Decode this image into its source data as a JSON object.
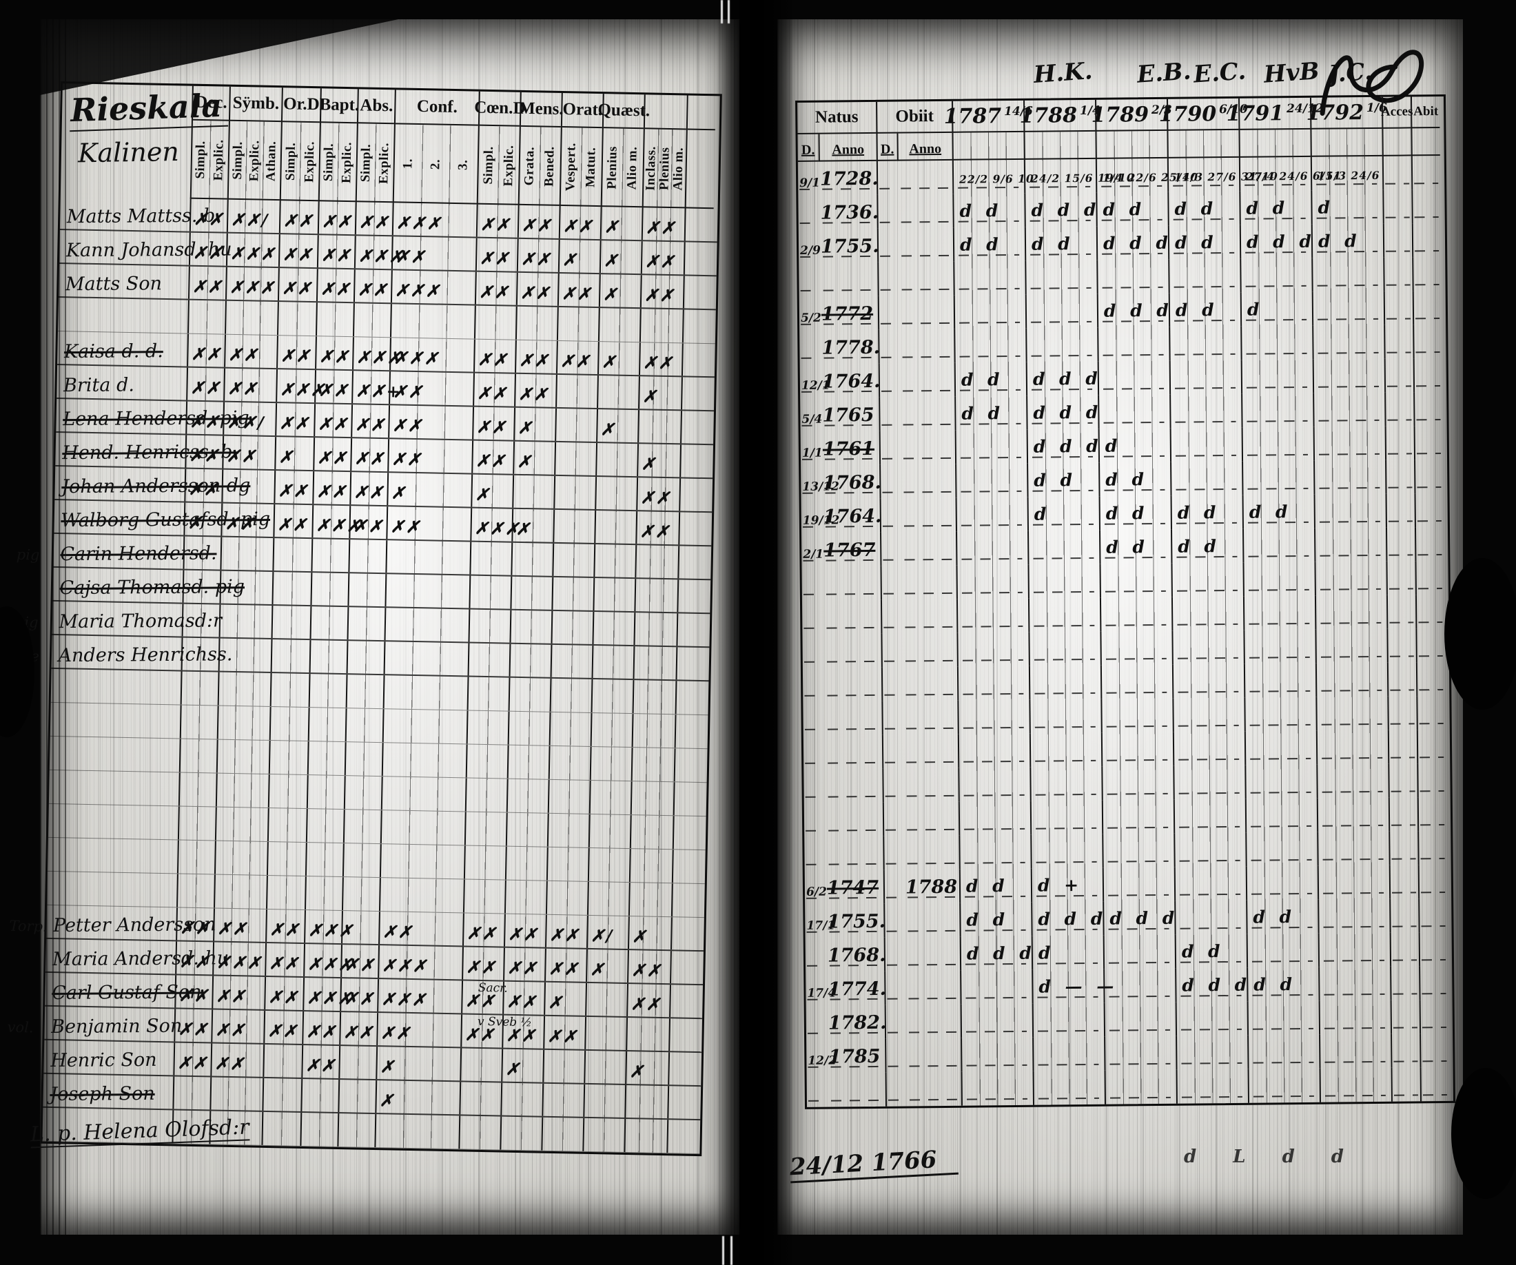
{
  "document": {
    "kind": "parish communion book scan",
    "left_page": {
      "title": "Rieskala",
      "subtitle": "Kalinen",
      "footnote": "L. p. Helena Olofsd:r",
      "columns": [
        {
          "label": "Dec.",
          "subs": [
            "Simpl.",
            "Explic."
          ]
        },
        {
          "label": "Sÿmb.",
          "subs": [
            "Simpl.",
            "Explic.",
            "Athan."
          ]
        },
        {
          "label": "Or.D",
          "subs": [
            "Simpl.",
            "Explic."
          ]
        },
        {
          "label": "Bapt.",
          "subs": [
            "Simpl.",
            "Explic."
          ]
        },
        {
          "label": "Abs.",
          "subs": [
            "Simpl.",
            "Explic."
          ]
        },
        {
          "label": "Conf.",
          "subs": [
            "1.",
            "2.",
            "3."
          ]
        },
        {
          "label": "Cœn.D",
          "subs": [
            "Simpl.",
            "Explic."
          ]
        },
        {
          "label": "Mens.",
          "subs": [
            "Grata.",
            "Bened."
          ]
        },
        {
          "label": "Orat.",
          "subs": [
            "Vespert.",
            "Matut."
          ]
        },
        {
          "label": "Quæst.",
          "subs": [
            "Plenius",
            "Alio m."
          ]
        },
        {
          "label": "",
          "subs": [
            "Inclass.",
            "Plenius",
            "Alio m."
          ]
        },
        {
          "label": "",
          "subs": [
            ""
          ]
        }
      ],
      "rows": [
        {
          "prefix": "",
          "name": "Matts Mattss. b.",
          "struck": false,
          "marks": [
            "✗✗",
            "✗✗/",
            "✗✗",
            "✗✗",
            "✗✗",
            "✗✗✗",
            "✗✗",
            "✗✗",
            "✗✗",
            "✗",
            "✗✗",
            ""
          ]
        },
        {
          "prefix": "",
          "name": "Kann Johansd. hu",
          "struck": false,
          "marks": [
            "✗✗",
            "✗✗✗",
            "✗✗",
            "✗✗",
            "✗✗✗",
            "✗✗",
            "✗✗",
            "✗✗",
            "✗",
            "✗",
            "✗✗",
            ""
          ]
        },
        {
          "prefix": "",
          "name": "Matts Son",
          "struck": false,
          "marks": [
            "✗✗",
            "✗✗✗",
            "✗✗",
            "✗✗",
            "✗✗",
            "✗✗✗",
            "✗✗",
            "✗✗",
            "✗✗",
            "✗",
            "✗✗",
            ""
          ]
        },
        {
          "prefix": "",
          "name": "",
          "struck": false,
          "marks": []
        },
        {
          "prefix": "",
          "name": "Kaisa d. d.",
          "struck": true,
          "marks": [
            "✗✗",
            "✗✗",
            "✗✗",
            "✗✗",
            "✗✗✗",
            "✗✗✗",
            "✗✗",
            "✗✗",
            "✗✗",
            "✗",
            "✗✗",
            ""
          ]
        },
        {
          "prefix": "",
          "name": "Brita d.",
          "struck": false,
          "marks": [
            "✗✗",
            "✗✗",
            "✗✗✗",
            "✗✗",
            "✗✗+",
            "✗✗",
            "✗✗",
            "✗✗",
            "",
            "",
            "✗",
            ""
          ]
        },
        {
          "prefix": "",
          "name": "Lena Hendersd. pig",
          "struck": true,
          "marks": [
            "✗✗",
            "✗✗/",
            "✗✗",
            "✗✗",
            "✗✗",
            "✗✗",
            "✗✗",
            "✗",
            "",
            "✗",
            "",
            ""
          ]
        },
        {
          "prefix": "",
          "name": "Hend. Henricss. b.",
          "struck": true,
          "marks": [
            "✗✗",
            "✗✗",
            "✗",
            "✗✗",
            "✗✗",
            "✗✗",
            "✗✗",
            "✗",
            "",
            "",
            "✗",
            ""
          ]
        },
        {
          "prefix": "",
          "name": "Johan Andersson dg",
          "struck": true,
          "marks": [
            "✗✗",
            "",
            "✗✗",
            "✗✗",
            "✗✗",
            "✗",
            "✗",
            "",
            "",
            "",
            "✗✗",
            ""
          ]
        },
        {
          "prefix": "",
          "name": "Walborg Gustafsd. pig",
          "struck": true,
          "marks": [
            "✗",
            "✗✗",
            "✗✗",
            "✗✗✗",
            "✗✗",
            "✗✗",
            "✗✗✗",
            "✗",
            "",
            "",
            "✗✗",
            ""
          ]
        },
        {
          "prefix": "pig",
          "name": "Carin Hendersd.",
          "struck": true,
          "marks": []
        },
        {
          "prefix": "",
          "name": "Cajsa Thomasd. pig",
          "struck": true,
          "marks": []
        },
        {
          "prefix": "pig",
          "name": "Maria Thomasd:r",
          "struck": false,
          "marks": []
        },
        {
          "prefix": "dre",
          "name": "Anders Henrichss.",
          "struck": false,
          "marks": []
        },
        {
          "prefix": "",
          "name": "",
          "struck": false,
          "marks": []
        },
        {
          "prefix": "",
          "name": "",
          "struck": false,
          "marks": []
        },
        {
          "prefix": "",
          "name": "",
          "struck": false,
          "marks": []
        },
        {
          "prefix": "",
          "name": "",
          "struck": false,
          "marks": []
        },
        {
          "prefix": "",
          "name": "",
          "struck": false,
          "marks": []
        },
        {
          "prefix": "",
          "name": "",
          "struck": false,
          "marks": []
        },
        {
          "prefix": "",
          "name": "",
          "struck": false,
          "marks": []
        },
        {
          "prefix": "Torp.",
          "name": "Petter Andersson",
          "struck": false,
          "marks": [
            "✗✗",
            "✗✗",
            "✗✗",
            "✗✗✗",
            "",
            "✗✗",
            "✗✗",
            "✗✗",
            "✗✗",
            "✗/",
            "✗",
            ""
          ]
        },
        {
          "prefix": "",
          "name": "Maria Andersd. hu",
          "struck": false,
          "marks": [
            "✗✗",
            "✗✗✗",
            "✗✗",
            "✗✗✗",
            "✗✗",
            "✗✗✗",
            "✗✗",
            "✗✗",
            "✗✗",
            "✗",
            "✗✗",
            ""
          ]
        },
        {
          "prefix": "",
          "name": "Carl Gustaf Son",
          "struck": true,
          "marks": [
            "✗✗",
            "✗✗",
            "✗✗",
            "✗✗✗",
            "✗✗",
            "✗✗✗",
            "✗✗",
            "✗✗",
            "✗",
            "",
            "✗✗",
            ""
          ],
          "note": "Sacr."
        },
        {
          "prefix": "vol.",
          "name": "Benjamin Son",
          "struck": false,
          "marks": [
            "✗✗",
            "✗✗",
            "✗✗",
            "✗✗",
            "✗✗",
            "✗✗",
            "✗✗",
            "✗✗",
            "✗✗",
            "",
            "",
            ""
          ],
          "note": "v Sveb ½"
        },
        {
          "prefix": "",
          "name": "Henric Son",
          "struck": false,
          "marks": [
            "✗✗",
            "✗✗",
            "",
            "✗✗",
            "",
            "✗",
            "",
            "✗",
            "",
            "",
            "✗",
            ""
          ]
        },
        {
          "prefix": "",
          "name": "Joseph Son",
          "struck": true,
          "marks": [
            "",
            "",
            "",
            "",
            "",
            "✗",
            "",
            "",
            "",
            "",
            "",
            ""
          ]
        },
        {
          "prefix": "",
          "name": "",
          "struck": false,
          "marks": []
        }
      ]
    },
    "right_page": {
      "top_initials": [
        "H.K.",
        "E.B.",
        "E.C.",
        "HvB",
        "J.C."
      ],
      "header": {
        "natus_label": "Natus",
        "obiit_label": "Obiit",
        "d_label": "D.",
        "anno_label": "Anno",
        "years": [
          {
            "year": "1787",
            "note": "14/6"
          },
          {
            "year": "1788",
            "note": "1/4"
          },
          {
            "year": "1789",
            "note": "2/3"
          },
          {
            "year": "1790",
            "note": "6/10"
          },
          {
            "year": "1791",
            "note": "24/12"
          },
          {
            "year": "1792",
            "note": "1/6"
          }
        ],
        "acces_label": "Acces",
        "abiit_label": "Abit"
      },
      "rows": [
        {
          "natus_d": "9/1",
          "natus_anno": "1728.",
          "struck": false,
          "obiit_d": "",
          "obiit_anno": "",
          "small": true,
          "years": [
            "22/2 9/6 10",
            "24/2 15/6 19/10",
            "1/4 22/6 25/10",
            "14/3 27/6 31/10",
            "27/4 24/6 6/11",
            "15/3 24/6"
          ]
        },
        {
          "natus_d": "",
          "natus_anno": "1736.",
          "struck": false,
          "obiit_d": "",
          "obiit_anno": "",
          "years": [
            "d d",
            "d d d",
            "d d",
            "d d",
            "d d",
            "d"
          ]
        },
        {
          "natus_d": "2/9",
          "natus_anno": "1755.",
          "struck": false,
          "obiit_d": "",
          "obiit_anno": "",
          "years": [
            "d d",
            "d d",
            "d d d",
            "d d",
            "d d d",
            "d d"
          ]
        },
        {
          "natus_d": "",
          "natus_anno": "",
          "struck": false,
          "obiit_d": "",
          "obiit_anno": "",
          "years": []
        },
        {
          "natus_d": "5/2",
          "natus_anno": "1772",
          "struck": true,
          "obiit_d": "",
          "obiit_anno": "",
          "years": [
            "",
            "",
            "d d d",
            "d d",
            "d",
            ""
          ]
        },
        {
          "natus_d": "",
          "natus_anno": "1778.",
          "struck": false,
          "obiit_d": "",
          "obiit_anno": "",
          "years": []
        },
        {
          "natus_d": "12/1",
          "natus_anno": "1764.",
          "struck": false,
          "obiit_d": "",
          "obiit_anno": "",
          "years": [
            "d d",
            "d d d",
            "",
            "",
            "",
            ""
          ]
        },
        {
          "natus_d": "5/4",
          "natus_anno": "1765",
          "struck": false,
          "obiit_d": "",
          "obiit_anno": "",
          "years": [
            "d d",
            "d d d",
            "",
            "",
            "",
            ""
          ]
        },
        {
          "natus_d": "1/1",
          "natus_anno": "1761",
          "struck": true,
          "obiit_d": "",
          "obiit_anno": "",
          "years": [
            "",
            "d d d",
            "d",
            "",
            "",
            ""
          ]
        },
        {
          "natus_d": "13/12",
          "natus_anno": "1768.",
          "struck": false,
          "obiit_d": "",
          "obiit_anno": "",
          "years": [
            "",
            "d d",
            "d d",
            "",
            "",
            ""
          ]
        },
        {
          "natus_d": "19/12",
          "natus_anno": "1764.",
          "struck": false,
          "obiit_d": "",
          "obiit_anno": "",
          "years": [
            "",
            "d",
            "d d",
            "d d",
            "d d",
            ""
          ]
        },
        {
          "natus_d": "2/1",
          "natus_anno": "1767",
          "struck": true,
          "obiit_d": "",
          "obiit_anno": "",
          "years": [
            "",
            "",
            "d d",
            "d d",
            "",
            ""
          ]
        },
        {
          "natus_d": "",
          "natus_anno": "",
          "struck": false,
          "obiit_d": "",
          "obiit_anno": "",
          "years": []
        },
        {
          "natus_d": "",
          "natus_anno": "",
          "struck": false,
          "obiit_d": "",
          "obiit_anno": "",
          "years": []
        },
        {
          "natus_d": "",
          "natus_anno": "",
          "struck": false,
          "obiit_d": "",
          "obiit_anno": "",
          "years": []
        },
        {
          "natus_d": "",
          "natus_anno": "",
          "struck": false,
          "obiit_d": "",
          "obiit_anno": "",
          "years": []
        },
        {
          "natus_d": "",
          "natus_anno": "",
          "struck": false,
          "obiit_d": "",
          "obiit_anno": "",
          "years": []
        },
        {
          "natus_d": "",
          "natus_anno": "",
          "struck": false,
          "obiit_d": "",
          "obiit_anno": "",
          "years": []
        },
        {
          "natus_d": "",
          "natus_anno": "",
          "struck": false,
          "obiit_d": "",
          "obiit_anno": "",
          "years": []
        },
        {
          "natus_d": "",
          "natus_anno": "",
          "struck": false,
          "obiit_d": "",
          "obiit_anno": "",
          "years": []
        },
        {
          "natus_d": "",
          "natus_anno": "",
          "struck": false,
          "obiit_d": "",
          "obiit_anno": "",
          "years": []
        },
        {
          "natus_d": "6/2",
          "natus_anno": "1747",
          "struck": true,
          "obiit_d": "",
          "obiit_anno": "1788",
          "years": [
            "d d",
            "d +",
            "",
            "",
            "",
            ""
          ]
        },
        {
          "natus_d": "17/1",
          "natus_anno": "1755.",
          "struck": false,
          "obiit_d": "",
          "obiit_anno": "",
          "years": [
            "d d",
            "d d d",
            "d d d",
            "",
            "d d",
            ""
          ]
        },
        {
          "natus_d": "",
          "natus_anno": "1768.",
          "struck": false,
          "obiit_d": "",
          "obiit_anno": "",
          "years": [
            "d d d",
            "d",
            "",
            "d d",
            "",
            ""
          ]
        },
        {
          "natus_d": "17/4",
          "natus_anno": "1774.",
          "struck": false,
          "obiit_d": "",
          "obiit_anno": "",
          "years": [
            "",
            "d — —",
            "",
            "d d d",
            "d d",
            ""
          ]
        },
        {
          "natus_d": "",
          "natus_anno": "1782.",
          "struck": false,
          "obiit_d": "",
          "obiit_anno": "",
          "years": []
        },
        {
          "natus_d": "12/2",
          "natus_anno": "1785",
          "struck": false,
          "obiit_d": "",
          "obiit_anno": "",
          "years": []
        },
        {
          "natus_d": "",
          "natus_anno": "",
          "struck": false,
          "obiit_d": "",
          "obiit_anno": "",
          "years": []
        }
      ],
      "below_note": "24/12 1766",
      "below_marks": "d  L  d  d"
    }
  }
}
